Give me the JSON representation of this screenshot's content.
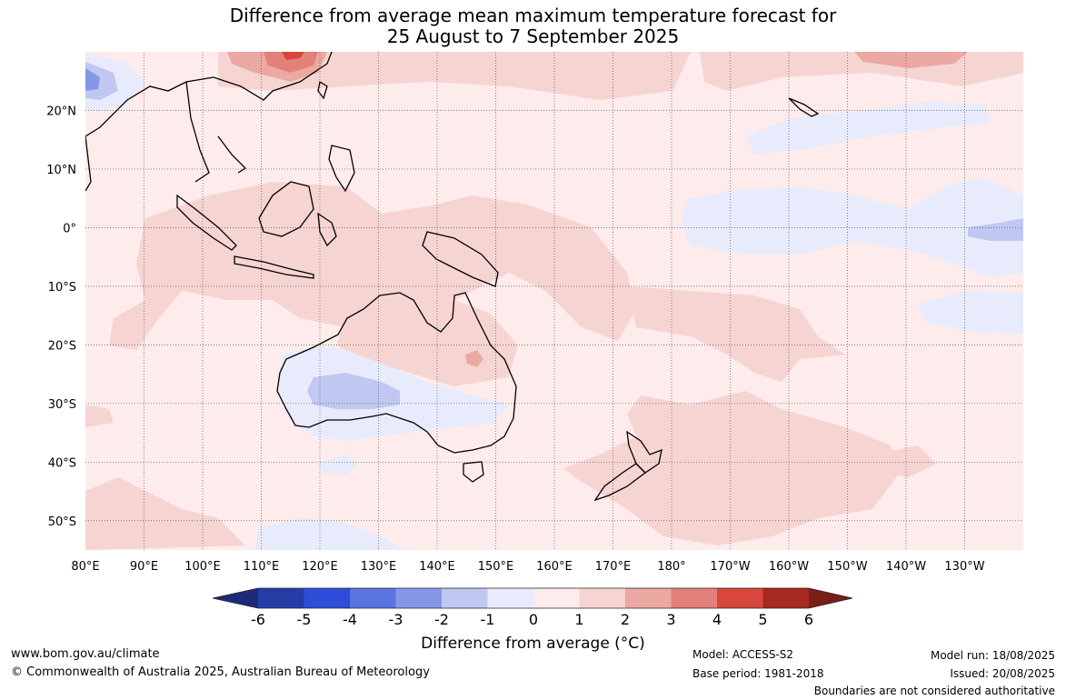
{
  "title": {
    "line1": "Difference from average mean maximum temperature forecast for",
    "line2": "25 August to 7 September 2025"
  },
  "map": {
    "lon_labels": [
      "80°E",
      "90°E",
      "100°E",
      "110°E",
      "120°E",
      "130°E",
      "140°E",
      "150°E",
      "160°E",
      "170°E",
      "180°",
      "170°W",
      "160°W",
      "150°W",
      "140°W",
      "130°W"
    ],
    "lat_labels": [
      "20°N",
      "10°N",
      "0°",
      "10°S",
      "20°S",
      "30°S",
      "40°S",
      "50°S"
    ],
    "lon_range": [
      80,
      240
    ],
    "lat_range": [
      -55,
      30
    ],
    "gridlines": true,
    "base_color": "#fdeceb"
  },
  "legend": {
    "ticks": [
      "-6",
      "-5",
      "-4",
      "-3",
      "-2",
      "-1",
      "0",
      "1",
      "2",
      "3",
      "4",
      "5",
      "6"
    ],
    "colors": [
      "#263da8",
      "#2e4dd8",
      "#5a75e2",
      "#8598e8",
      "#c0c8f2",
      "#e8ebfb",
      "#fdeceb",
      "#f6d4d2",
      "#eca8a3",
      "#e38079",
      "#d9463b",
      "#a8291f"
    ],
    "low_arrow_color": "#1c2a78",
    "high_arrow_color": "#7a1e18",
    "label": "Difference from average (°C)"
  },
  "footer": {
    "website": "www.bom.gov.au/climate",
    "copyright": "© Commonwealth of Australia 2025, Australian Bureau of Meteorology",
    "model": "Model: ACCESS-S2",
    "base_period": "Base period: 1981-2018",
    "model_run": "Model run: 18/08/2025",
    "issued": "Issued: 20/08/2025",
    "disclaimer": "Boundaries are not considered authoritative"
  }
}
